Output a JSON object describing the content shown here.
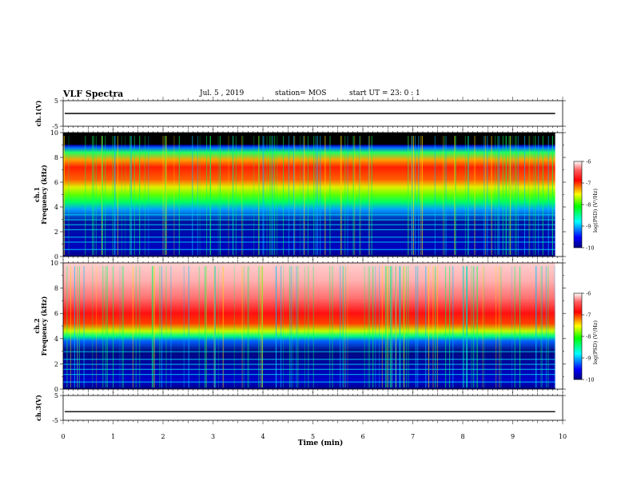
{
  "header": {
    "title": "VLF Spectra",
    "date": "Jul. 5 , 2019",
    "station": "station= MOS",
    "start": "start UT =  23: 0  : 1"
  },
  "colors": {
    "spectral_low": "#00007f",
    "spectral_mid": "#00ff00",
    "spectral_high": "#ff0000",
    "band_black": "#000000"
  },
  "chart_data": [
    {
      "type": "line",
      "name": "ch1-waveform",
      "ylabel": "ch.1(V)",
      "yticks": [
        "5",
        "-5"
      ],
      "ylim": [
        -5,
        5
      ],
      "xlim": [
        0,
        10
      ],
      "note_value": 0
    },
    {
      "type": "heatmap",
      "name": "ch1-spectrogram",
      "ylabel_top": "ch.1",
      "ylabel": "Frequency (kHz)",
      "ylim": [
        0,
        10
      ],
      "xlim": [
        0,
        10
      ],
      "data_end_min": 9.85,
      "yticks": [
        "0",
        "2",
        "4",
        "6",
        "8",
        "10"
      ],
      "colorbar": {
        "label": "log(PSD) (V²/Hz)",
        "ticks": [
          "-6",
          "-7",
          "-8",
          "-9",
          "-10"
        ],
        "range": [
          -10,
          -6
        ]
      },
      "black_band_khz": [
        9.0,
        10.0
      ],
      "intense_band_khz": [
        5.5,
        7.5
      ]
    },
    {
      "type": "heatmap",
      "name": "ch2-spectrogram",
      "ylabel_top": "ch.2",
      "ylabel": "Frequency (kHz)",
      "ylim": [
        0,
        10
      ],
      "xlim": [
        0,
        10
      ],
      "data_end_min": 9.85,
      "yticks": [
        "0",
        "2",
        "4",
        "6",
        "8",
        "10"
      ],
      "colorbar": {
        "label": "log(PSD) (V²/Hz)",
        "ticks": [
          "-6",
          "-7",
          "-8",
          "-9",
          "-10"
        ],
        "range": [
          -10,
          -6
        ]
      },
      "intense_band_khz": [
        4.5,
        10.0
      ]
    },
    {
      "type": "line",
      "name": "ch3-waveform",
      "ylabel": "ch.3(V)",
      "yticks": [
        "5",
        "-5"
      ],
      "ylim": [
        -5,
        5
      ],
      "xlim": [
        0,
        10
      ],
      "note_value": -1.5
    }
  ],
  "xaxis": {
    "label": "Time (min)",
    "ticks": [
      "0",
      "1",
      "2",
      "3",
      "4",
      "5",
      "6",
      "7",
      "8",
      "9",
      "10"
    ]
  }
}
